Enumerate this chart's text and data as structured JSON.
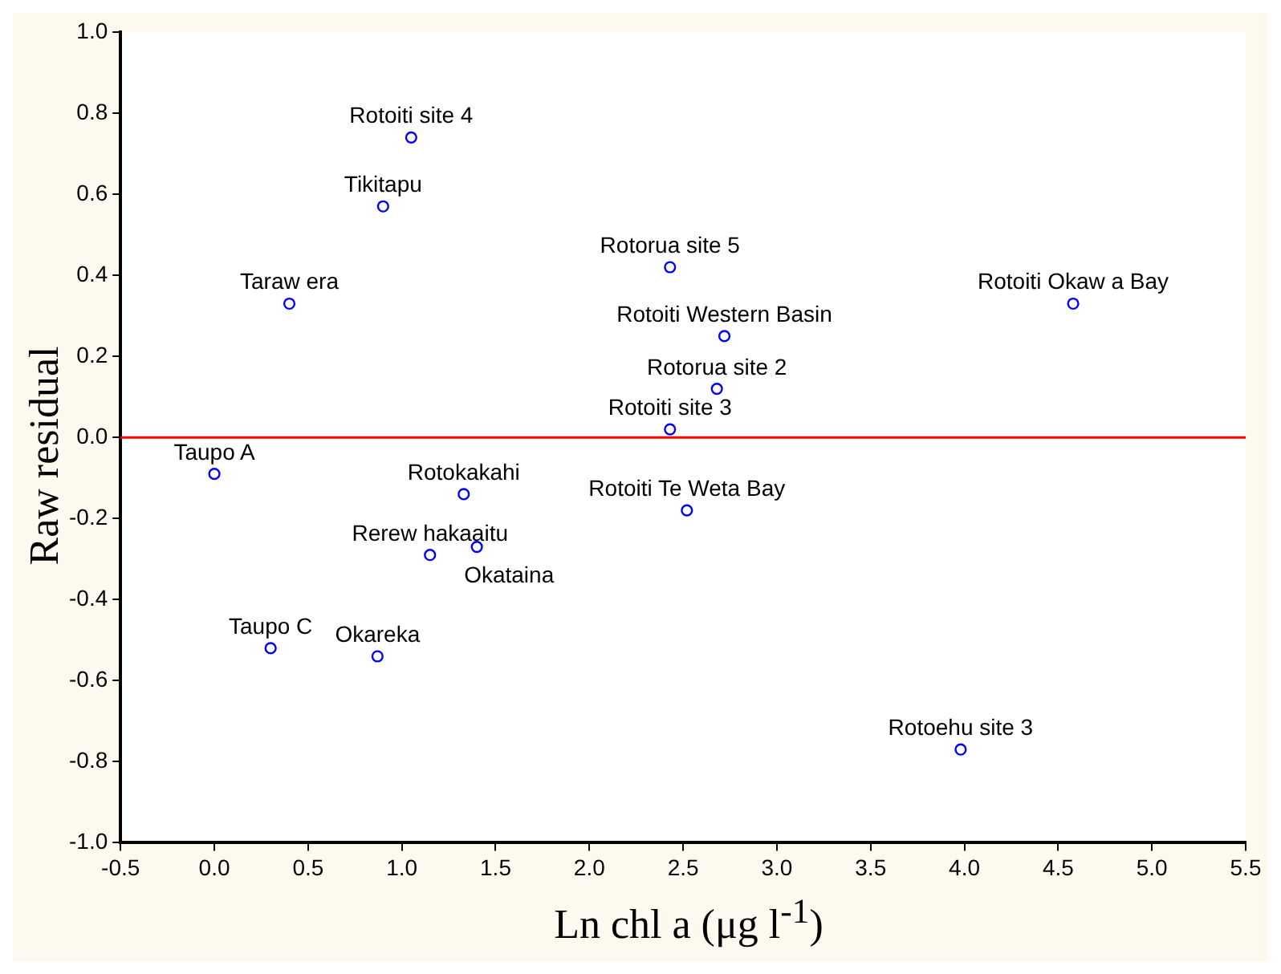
{
  "chart_data": {
    "type": "scatter",
    "xlabel": "Ln chl a (μg l$^{-1}$)",
    "ylabel": "Raw residual",
    "x": [
      0.0,
      0.3,
      0.4,
      0.87,
      0.9,
      1.05,
      1.15,
      1.33,
      1.4,
      2.43,
      2.43,
      2.52,
      2.68,
      2.72,
      3.98,
      4.58
    ],
    "series": [
      {
        "color": "#0000ff",
        "values": [
          -0.09,
          -0.52,
          0.33,
          -0.54,
          0.57,
          0.74,
          -0.29,
          -0.14,
          -0.27,
          0.42,
          0.02,
          -0.18,
          0.12,
          0.25,
          -0.77,
          0.33
        ]
      }
    ],
    "annotations": [
      {
        "text": "Taupo A",
        "x": 0.0,
        "y": -0.09
      },
      {
        "text": "Taupo C",
        "x": 0.3,
        "y": -0.52
      },
      {
        "text": "Taraw era",
        "x": 0.4,
        "y": 0.33
      },
      {
        "text": "Okareka",
        "x": 0.87,
        "y": -0.54
      },
      {
        "text": "Tikitapu",
        "x": 0.9,
        "y": 0.57
      },
      {
        "text": "Rotoiti site 4",
        "x": 1.05,
        "y": 0.74
      },
      {
        "text": "Rerew hakaaitu",
        "x": 1.15,
        "y": -0.29
      },
      {
        "text": "Rotokakahi",
        "x": 1.33,
        "y": -0.14
      },
      {
        "text": "Okataina",
        "x": 1.4,
        "y": -0.27
      },
      {
        "text": "Rotorua site 5",
        "x": 2.43,
        "y": 0.42
      },
      {
        "text": "Rotoiti site 3",
        "x": 2.43,
        "y": 0.02
      },
      {
        "text": "Rotoiti Te Weta Bay",
        "x": 2.52,
        "y": -0.18
      },
      {
        "text": "Rotorua site 2",
        "x": 2.68,
        "y": 0.12
      },
      {
        "text": "Rotoiti Western Basin",
        "x": 2.72,
        "y": 0.25
      },
      {
        "text": "Rotoehu site 3",
        "x": 3.98,
        "y": -0.77
      },
      {
        "text": "Rotoiti Okaw a Bay",
        "x": 4.58,
        "y": 0.33
      }
    ],
    "ref_lines": [
      {
        "axis": "y",
        "value": 0,
        "color": "#ff0000"
      }
    ],
    "xlim": [
      -0.5,
      5.5
    ],
    "xticks": [
      {
        "value": -0.5,
        "label": "-0.5"
      },
      {
        "value": 0,
        "label": "0.0"
      },
      {
        "value": 0.5,
        "label": "0.5"
      },
      {
        "value": 1,
        "label": "1.0"
      },
      {
        "value": 1.5,
        "label": "1.5"
      },
      {
        "value": 2,
        "label": "2.0"
      },
      {
        "value": 2.5,
        "label": "2.5"
      },
      {
        "value": 3,
        "label": "3.0"
      },
      {
        "value": 3.5,
        "label": "3.5"
      },
      {
        "value": 4,
        "label": "4.0"
      },
      {
        "value": 4.5,
        "label": "4.5"
      },
      {
        "value": 5,
        "label": "5.0"
      },
      {
        "value": 5.5,
        "label": "5.5"
      }
    ],
    "ylim": [
      -1,
      1
    ],
    "yticks": [
      {
        "value": -1,
        "label": "-1.0"
      },
      {
        "value": -0.8,
        "label": "-0.8"
      },
      {
        "value": -0.6,
        "label": "-0.6"
      },
      {
        "value": -0.4,
        "label": "-0.4"
      },
      {
        "value": -0.2,
        "label": "-0.2"
      },
      {
        "value": 0,
        "label": "0.0"
      },
      {
        "value": 0.2,
        "label": "0.2"
      },
      {
        "value": 0.4,
        "label": "0.4"
      },
      {
        "value": 0.6,
        "label": "0.6"
      },
      {
        "value": 0.8,
        "label": "0.8"
      },
      {
        "value": 1,
        "label": "1.0"
      }
    ],
    "grid": false,
    "legend": false,
    "marker": "circle"
  }
}
